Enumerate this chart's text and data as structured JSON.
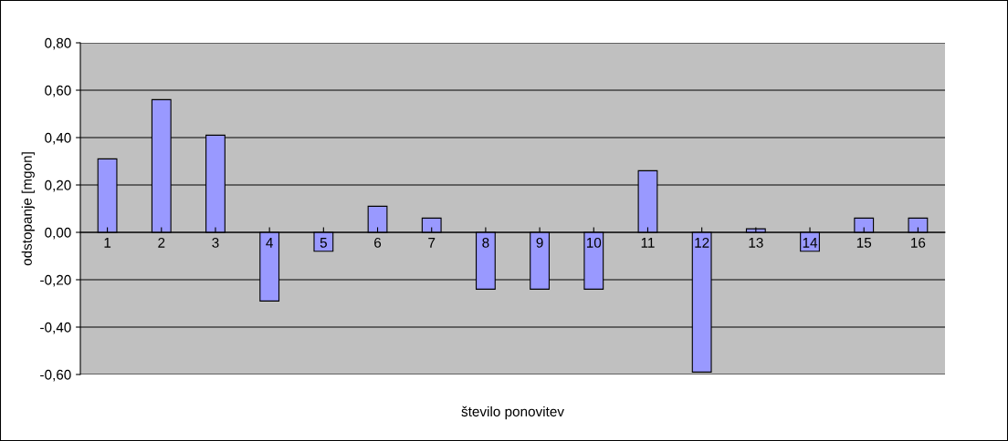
{
  "chart_data": {
    "type": "bar",
    "xlabel": "število ponovitev",
    "ylabel": "odstopanje [mgon]",
    "categories": [
      "1",
      "2",
      "3",
      "4",
      "5",
      "6",
      "7",
      "8",
      "9",
      "10",
      "11",
      "12",
      "13",
      "14",
      "15",
      "16"
    ],
    "values": [
      0.31,
      0.56,
      0.41,
      -0.29,
      -0.08,
      0.11,
      0.06,
      -0.24,
      -0.24,
      -0.24,
      0.26,
      -0.59,
      0.015,
      -0.08,
      0.06,
      0.06
    ],
    "color": "#9999ff",
    "ylim": [
      -0.6,
      0.8
    ],
    "yticks": [
      {
        "value": -0.6,
        "label": "-0,60"
      },
      {
        "value": -0.4,
        "label": "-0,40"
      },
      {
        "value": -0.2,
        "label": "-0,20"
      },
      {
        "value": 0,
        "label": "0,00"
      },
      {
        "value": 0.2,
        "label": "0,20"
      },
      {
        "value": 0.4,
        "label": "0,40"
      },
      {
        "value": 0.6,
        "label": "0,60"
      },
      {
        "value": 0.8,
        "label": "0,80"
      }
    ],
    "grid": "y",
    "legend": false
  }
}
